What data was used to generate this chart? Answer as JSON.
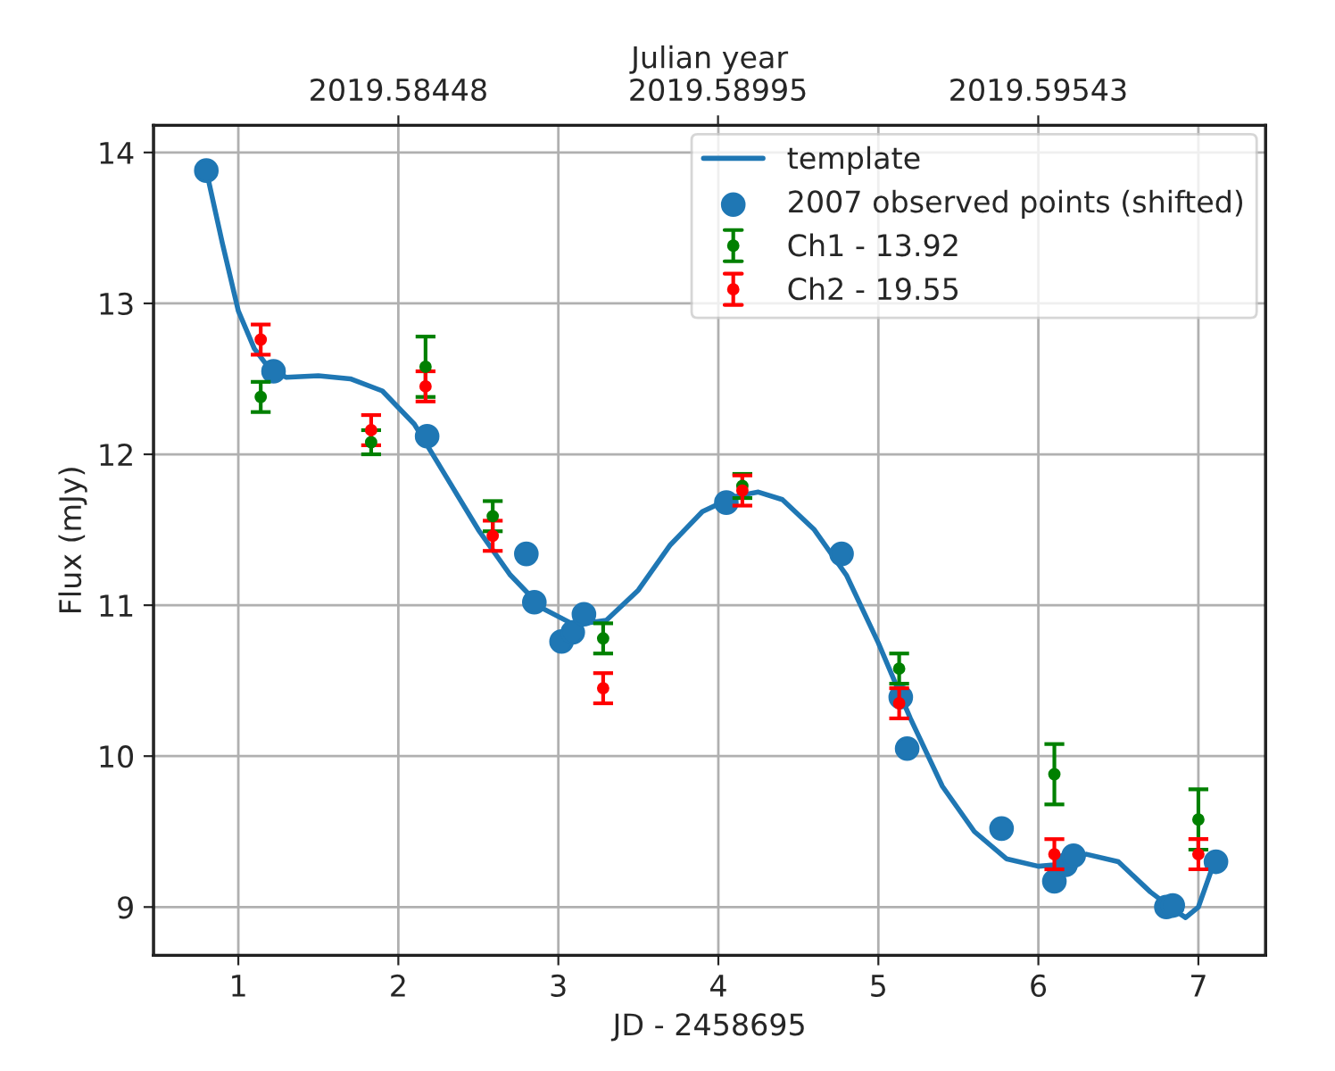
{
  "chart_data": {
    "type": "line",
    "xlabel": "JD - 2458695",
    "ylabel": "Flux (mJy)",
    "x2label": "Julian year",
    "xlim": [
      0.47,
      7.42
    ],
    "xticks": [
      1,
      2,
      3,
      4,
      5,
      6,
      7
    ],
    "ylim": [
      8.68,
      14.18
    ],
    "yticks": [
      9,
      10,
      11,
      12,
      13,
      14
    ],
    "x2lim": [
      2019.58029,
      2019.59932
    ],
    "x2ticks": [
      2019.58448,
      2019.58995,
      2019.59543
    ],
    "grid": true,
    "legend": "top right",
    "series": [
      {
        "name": "template",
        "color": "#1f77b4",
        "line_style": "solid",
        "x": [
          0.8,
          0.9,
          1.0,
          1.1,
          1.2,
          1.3,
          1.5,
          1.7,
          1.9,
          2.1,
          2.3,
          2.5,
          2.7,
          2.9,
          3.1,
          3.3,
          3.5,
          3.7,
          3.9,
          4.1,
          4.25,
          4.4,
          4.6,
          4.8,
          5.0,
          5.2,
          5.4,
          5.6,
          5.8,
          6.0,
          6.1,
          6.3,
          6.5,
          6.7,
          6.85,
          6.92,
          7.0,
          7.1
        ],
        "values": [
          13.88,
          13.4,
          12.95,
          12.7,
          12.56,
          12.51,
          12.52,
          12.5,
          12.42,
          12.2,
          11.85,
          11.5,
          11.2,
          10.98,
          10.87,
          10.9,
          11.1,
          11.4,
          11.62,
          11.72,
          11.75,
          11.7,
          11.5,
          11.2,
          10.75,
          10.25,
          9.8,
          9.5,
          9.32,
          9.27,
          9.28,
          9.35,
          9.3,
          9.1,
          8.98,
          8.93,
          9.0,
          9.3
        ]
      },
      {
        "name": "2007 observed points (shifted)",
        "type": "scatter",
        "marker": "circle",
        "color": "#1f77b4",
        "x": [
          0.8,
          1.22,
          2.18,
          2.8,
          2.85,
          3.02,
          3.09,
          3.16,
          4.05,
          4.77,
          5.14,
          5.18,
          5.77,
          6.1,
          6.17,
          6.22,
          6.8,
          6.84,
          7.11
        ],
        "values": [
          13.88,
          12.55,
          12.12,
          11.34,
          11.02,
          10.76,
          10.82,
          10.94,
          11.68,
          11.34,
          10.39,
          10.05,
          9.52,
          9.17,
          9.28,
          9.34,
          9.0,
          9.01,
          9.3
        ]
      },
      {
        "name": "Ch1 - 13.92",
        "type": "scatter",
        "marker": "circle",
        "color": "#008000",
        "x": [
          1.14,
          1.83,
          2.17,
          2.59,
          3.28,
          4.15,
          5.13,
          6.1,
          7.0
        ],
        "values": [
          12.38,
          12.08,
          12.58,
          11.59,
          10.78,
          11.79,
          10.58,
          9.88,
          9.58
        ],
        "errors": [
          0.1,
          0.08,
          0.2,
          0.1,
          0.1,
          0.08,
          0.1,
          0.2,
          0.2
        ]
      },
      {
        "name": "Ch2 - 19.55",
        "type": "scatter",
        "marker": "circle",
        "color": "#ff0000",
        "x": [
          1.14,
          1.83,
          2.17,
          2.59,
          3.28,
          4.15,
          5.13,
          6.1,
          7.0
        ],
        "values": [
          12.76,
          12.16,
          12.45,
          11.46,
          10.45,
          11.76,
          10.35,
          9.35,
          9.35
        ],
        "errors": [
          0.1,
          0.1,
          0.1,
          0.1,
          0.1,
          0.1,
          0.1,
          0.1,
          0.1
        ]
      }
    ]
  }
}
